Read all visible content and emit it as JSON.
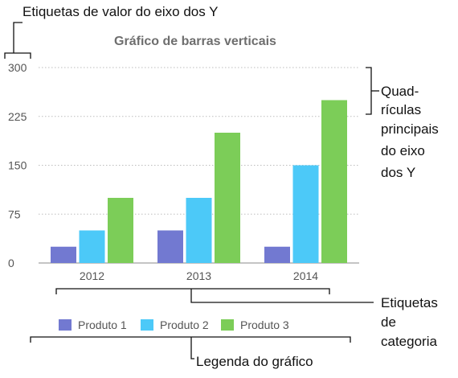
{
  "chart_data": {
    "type": "bar",
    "title": "Gráfico de barras verticais",
    "categories": [
      "2012",
      "2013",
      "2014"
    ],
    "series": [
      {
        "name": "Produto 1",
        "values": [
          25,
          50,
          25
        ],
        "color": "#7279d1"
      },
      {
        "name": "Produto 2",
        "values": [
          50,
          100,
          150
        ],
        "color": "#4cc9f8"
      },
      {
        "name": "Produto 3",
        "values": [
          100,
          200,
          250
        ],
        "color": "#7ccd58"
      }
    ],
    "yticks": [
      0,
      75,
      150,
      225,
      300
    ],
    "ylim": [
      0,
      300
    ],
    "grid": true,
    "legend_position": "bottom"
  },
  "callouts": {
    "y_axis_labels": "Etiquetas de valor do eixo dos Y",
    "gridlines": [
      "Quad-",
      "rículas",
      "principais",
      "do eixo",
      "dos Y"
    ],
    "category_labels": [
      "Etiquetas",
      "de",
      "categoria"
    ],
    "legend": "Legenda do gráfico"
  }
}
